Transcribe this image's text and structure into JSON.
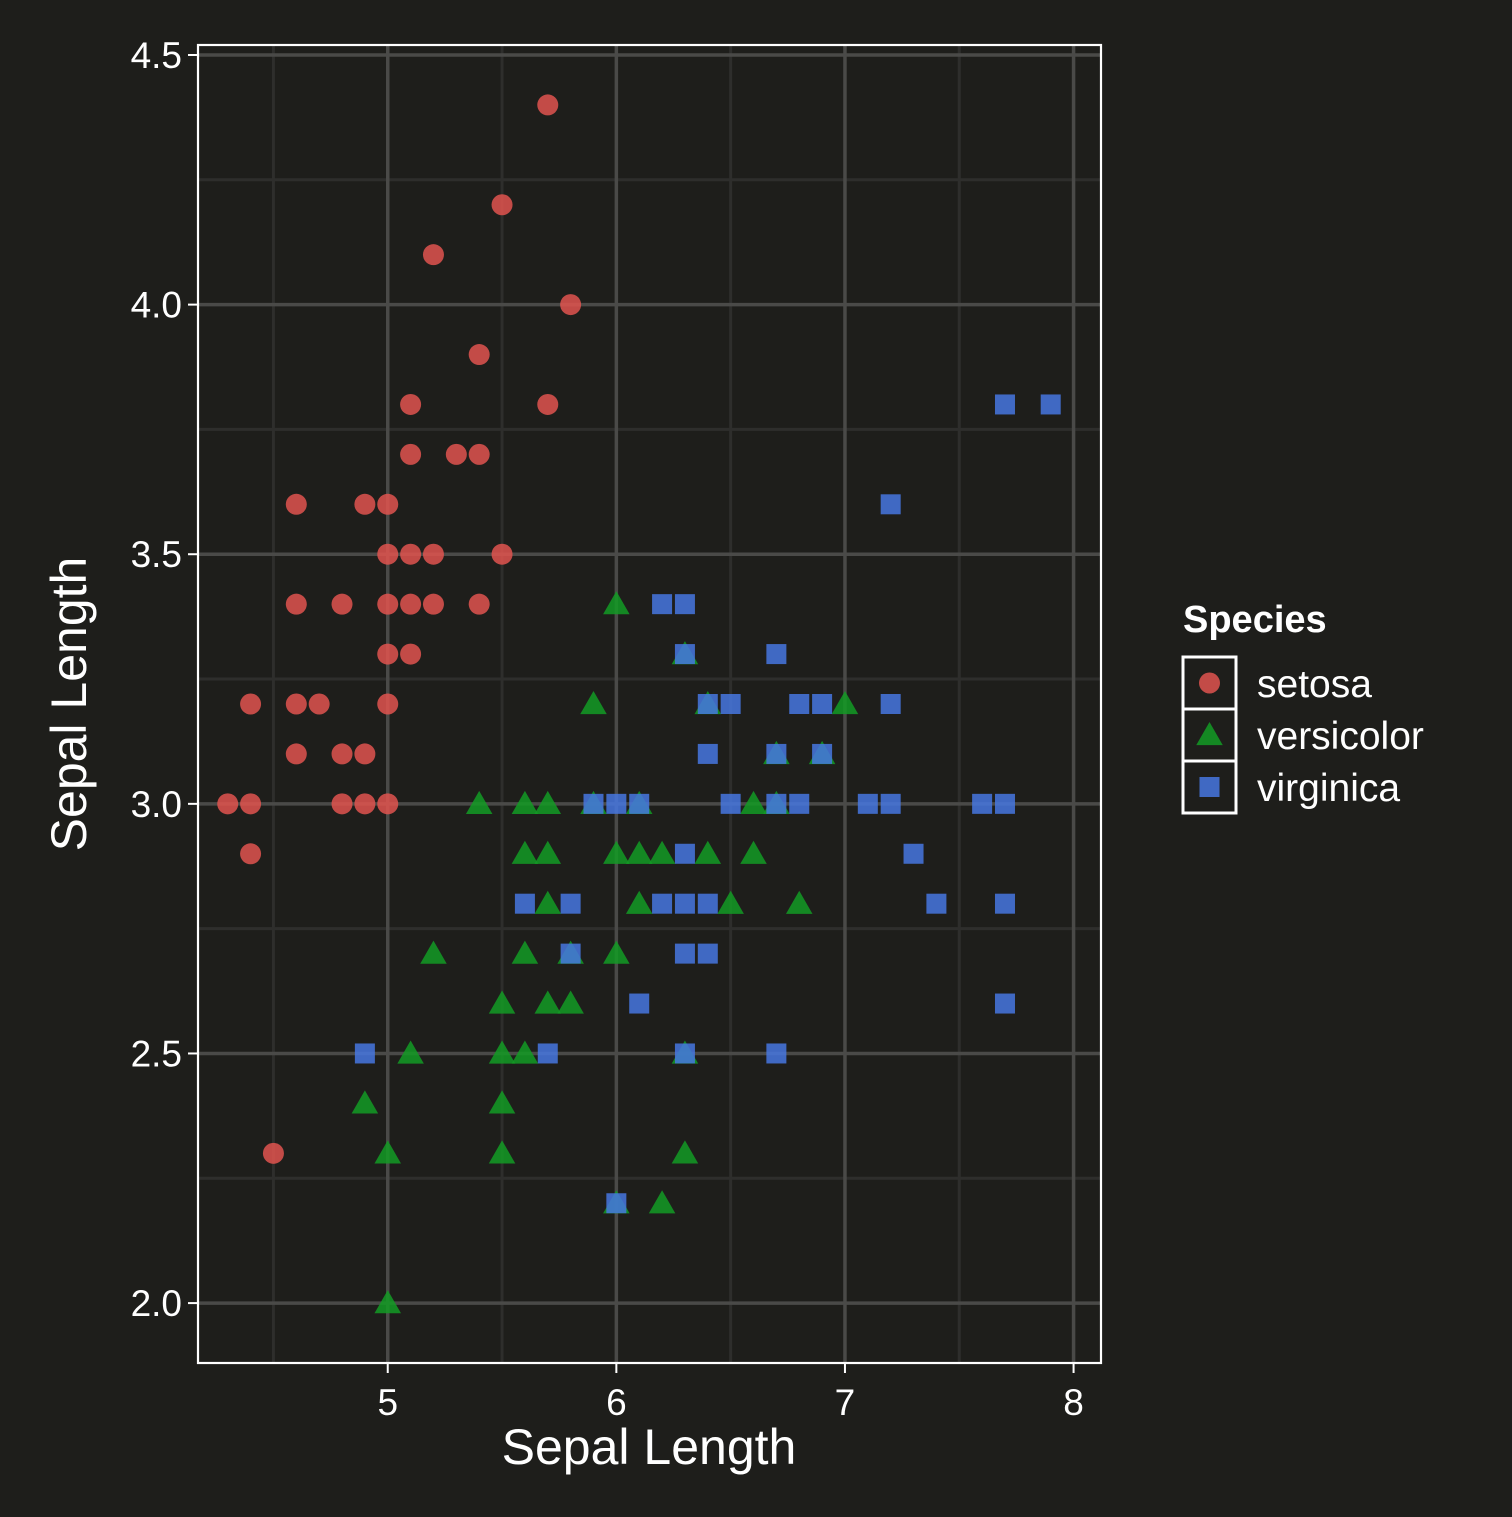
{
  "chart_data": {
    "type": "scatter",
    "title": "",
    "xlabel": "Sepal Length",
    "ylabel": "Sepal Length",
    "xlim": [
      4.17,
      8.12
    ],
    "ylim": [
      1.88,
      4.52
    ],
    "xticks": [
      5,
      6,
      7,
      8
    ],
    "xtick_labels": [
      "5",
      "6",
      "7",
      "8"
    ],
    "yticks": [
      2.0,
      2.5,
      3.0,
      3.5,
      4.0,
      4.5
    ],
    "ytick_labels": [
      "2.0",
      "2.5",
      "3.0",
      "3.5",
      "4.0",
      "4.5"
    ],
    "grid": true,
    "legend": {
      "title": "Species",
      "placement": "right",
      "entries": [
        "setosa",
        "versicolor",
        "virginica"
      ]
    },
    "colors": {
      "background": "#1e1e1b",
      "grid_major": "#4a4a48",
      "grid_minor": "#2e2e2c",
      "axis": "#ffffff",
      "text": "#ffffff",
      "setosa": "#e0534f",
      "versicolor": "#139b25",
      "virginica": "#4777e0"
    },
    "series": [
      {
        "name": "setosa",
        "marker": "circle",
        "points": [
          [
            5.7,
            4.4
          ],
          [
            5.5,
            4.2
          ],
          [
            5.2,
            4.1
          ],
          [
            5.8,
            4.0
          ],
          [
            5.4,
            3.9
          ],
          [
            5.1,
            3.8
          ],
          [
            5.7,
            3.8
          ],
          [
            5.1,
            3.7
          ],
          [
            5.3,
            3.7
          ],
          [
            5.4,
            3.7
          ],
          [
            4.6,
            3.6
          ],
          [
            4.9,
            3.6
          ],
          [
            5.0,
            3.6
          ],
          [
            5.0,
            3.5
          ],
          [
            5.1,
            3.5
          ],
          [
            5.2,
            3.5
          ],
          [
            5.5,
            3.5
          ],
          [
            4.6,
            3.4
          ],
          [
            4.8,
            3.4
          ],
          [
            5.0,
            3.4
          ],
          [
            5.1,
            3.4
          ],
          [
            5.2,
            3.4
          ],
          [
            5.4,
            3.4
          ],
          [
            5.0,
            3.3
          ],
          [
            5.1,
            3.3
          ],
          [
            4.4,
            3.2
          ],
          [
            4.6,
            3.2
          ],
          [
            4.7,
            3.2
          ],
          [
            5.0,
            3.2
          ],
          [
            4.6,
            3.1
          ],
          [
            4.8,
            3.1
          ],
          [
            4.9,
            3.1
          ],
          [
            4.3,
            3.0
          ],
          [
            4.4,
            3.0
          ],
          [
            4.8,
            3.0
          ],
          [
            4.9,
            3.0
          ],
          [
            5.0,
            3.0
          ],
          [
            4.4,
            2.9
          ],
          [
            4.5,
            2.3
          ]
        ]
      },
      {
        "name": "versicolor",
        "marker": "triangle",
        "points": [
          [
            6.0,
            3.4
          ],
          [
            6.3,
            3.3
          ],
          [
            5.9,
            3.2
          ],
          [
            6.4,
            3.2
          ],
          [
            7.0,
            3.2
          ],
          [
            6.7,
            3.1
          ],
          [
            6.9,
            3.1
          ],
          [
            5.4,
            3.0
          ],
          [
            5.6,
            3.0
          ],
          [
            5.7,
            3.0
          ],
          [
            5.9,
            3.0
          ],
          [
            6.1,
            3.0
          ],
          [
            6.6,
            3.0
          ],
          [
            6.7,
            3.0
          ],
          [
            5.6,
            2.9
          ],
          [
            5.7,
            2.9
          ],
          [
            6.0,
            2.9
          ],
          [
            6.1,
            2.9
          ],
          [
            6.2,
            2.9
          ],
          [
            6.4,
            2.9
          ],
          [
            6.6,
            2.9
          ],
          [
            5.7,
            2.8
          ],
          [
            6.1,
            2.8
          ],
          [
            6.5,
            2.8
          ],
          [
            6.8,
            2.8
          ],
          [
            5.2,
            2.7
          ],
          [
            5.6,
            2.7
          ],
          [
            5.8,
            2.7
          ],
          [
            6.0,
            2.7
          ],
          [
            5.5,
            2.6
          ],
          [
            5.7,
            2.6
          ],
          [
            5.8,
            2.6
          ],
          [
            5.1,
            2.5
          ],
          [
            5.5,
            2.5
          ],
          [
            5.6,
            2.5
          ],
          [
            6.3,
            2.5
          ],
          [
            4.9,
            2.4
          ],
          [
            5.5,
            2.4
          ],
          [
            5.0,
            2.3
          ],
          [
            5.5,
            2.3
          ],
          [
            6.3,
            2.3
          ],
          [
            6.0,
            2.2
          ],
          [
            6.2,
            2.2
          ],
          [
            5.0,
            2.0
          ]
        ]
      },
      {
        "name": "virginica",
        "marker": "square",
        "points": [
          [
            7.7,
            3.8
          ],
          [
            7.9,
            3.8
          ],
          [
            7.2,
            3.6
          ],
          [
            6.2,
            3.4
          ],
          [
            6.3,
            3.4
          ],
          [
            6.3,
            3.3
          ],
          [
            6.7,
            3.3
          ],
          [
            6.4,
            3.2
          ],
          [
            6.5,
            3.2
          ],
          [
            6.8,
            3.2
          ],
          [
            6.9,
            3.2
          ],
          [
            7.2,
            3.2
          ],
          [
            6.4,
            3.1
          ],
          [
            6.7,
            3.1
          ],
          [
            6.9,
            3.1
          ],
          [
            5.9,
            3.0
          ],
          [
            6.0,
            3.0
          ],
          [
            6.1,
            3.0
          ],
          [
            6.5,
            3.0
          ],
          [
            6.7,
            3.0
          ],
          [
            6.8,
            3.0
          ],
          [
            7.1,
            3.0
          ],
          [
            7.2,
            3.0
          ],
          [
            7.6,
            3.0
          ],
          [
            7.7,
            3.0
          ],
          [
            6.3,
            2.9
          ],
          [
            7.3,
            2.9
          ],
          [
            5.6,
            2.8
          ],
          [
            5.8,
            2.8
          ],
          [
            6.2,
            2.8
          ],
          [
            6.3,
            2.8
          ],
          [
            6.4,
            2.8
          ],
          [
            7.4,
            2.8
          ],
          [
            7.7,
            2.8
          ],
          [
            5.8,
            2.7
          ],
          [
            6.3,
            2.7
          ],
          [
            6.4,
            2.7
          ],
          [
            6.1,
            2.6
          ],
          [
            7.7,
            2.6
          ],
          [
            4.9,
            2.5
          ],
          [
            5.7,
            2.5
          ],
          [
            6.3,
            2.5
          ],
          [
            6.7,
            2.5
          ],
          [
            6.0,
            2.2
          ]
        ]
      }
    ]
  }
}
